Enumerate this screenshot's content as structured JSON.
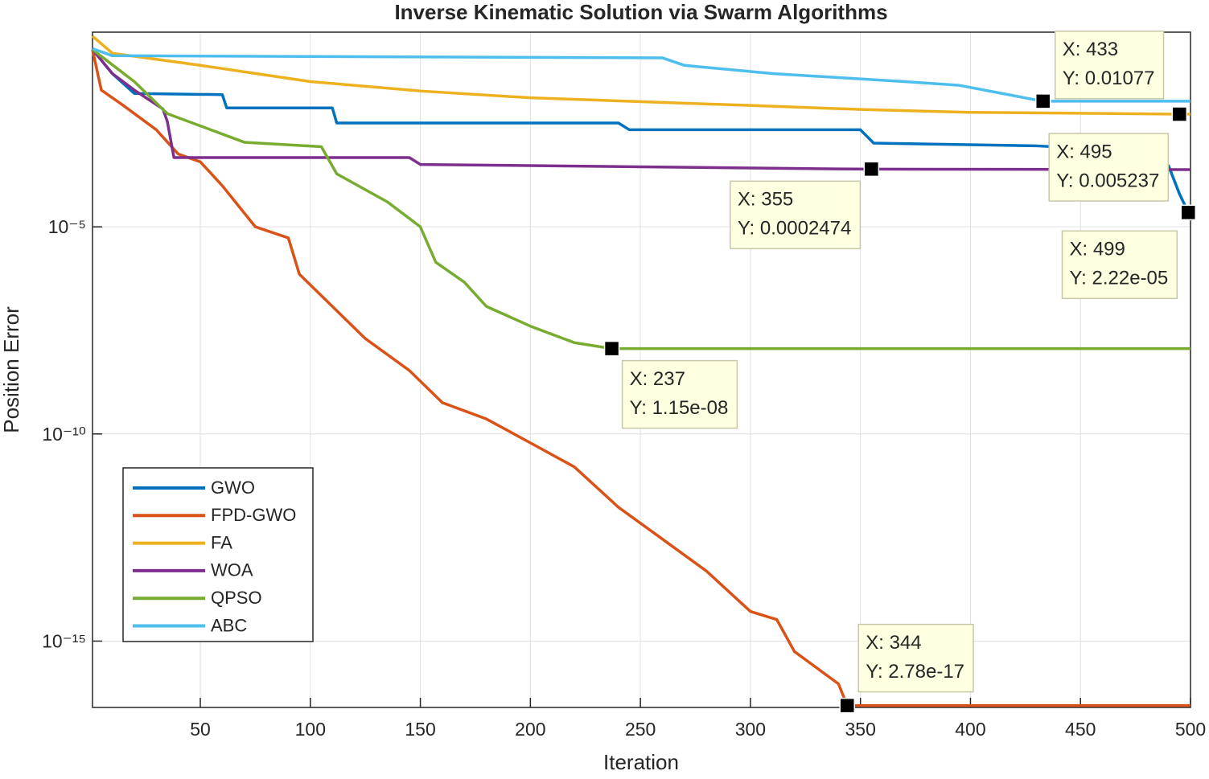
{
  "chart_data": {
    "type": "line",
    "title": "Inverse Kinematic Solution via Swarm Algorithms",
    "x_label": "Iteration",
    "y_label": "Position Error",
    "log_y": true,
    "grid": true,
    "legend_position": "lower-left",
    "xlim": [
      1,
      500
    ],
    "xticks": [
      50,
      100,
      150,
      200,
      250,
      300,
      350,
      400,
      450,
      500
    ],
    "ylim": [
      2.5e-17,
      0.5
    ],
    "yticks": [
      {
        "value": 1e-15,
        "label": "10⁻¹⁵"
      },
      {
        "value": 1e-10,
        "label": "10⁻¹⁰"
      },
      {
        "value": 1e-05,
        "label": "10⁻⁵"
      }
    ],
    "series": [
      {
        "name": "GWO",
        "color": "#0072BD",
        "x": [
          1,
          10,
          20,
          60,
          62,
          110,
          112,
          240,
          245,
          350,
          356,
          430,
          470,
          490,
          495,
          499,
          500
        ],
        "values": [
          0.19,
          0.05,
          0.0166,
          0.0155,
          0.0074,
          0.0074,
          0.0032,
          0.0032,
          0.0022,
          0.0022,
          0.00105,
          0.0009,
          0.0007,
          0.0003,
          6.2e-05,
          2.22e-05,
          2.22e-05
        ]
      },
      {
        "name": "FPD-GWO",
        "color": "#D95319",
        "x": [
          1,
          5,
          15,
          30,
          40,
          50,
          60,
          75,
          90,
          95,
          110,
          125,
          145,
          160,
          180,
          200,
          220,
          240,
          260,
          280,
          300,
          312,
          320,
          340,
          344,
          500
        ],
        "values": [
          0.19,
          0.02,
          0.0085,
          0.0022,
          0.00057,
          0.00037,
          9.8e-05,
          1e-05,
          5.4e-06,
          7.2e-07,
          1.2e-07,
          2e-08,
          3.4e-09,
          5.7e-10,
          2.3e-10,
          6.1e-11,
          1.6e-11,
          1.7e-12,
          2.9e-13,
          4.9e-14,
          5.2e-15,
          3.3e-15,
          5.6e-16,
          9.3e-17,
          2.78e-17,
          2.78e-17
        ]
      },
      {
        "name": "FA",
        "color": "#EDB120",
        "x": [
          1,
          10,
          50,
          100,
          150,
          200,
          300,
          350,
          400,
          495,
          500
        ],
        "values": [
          0.4,
          0.155,
          0.079,
          0.032,
          0.019,
          0.013,
          0.0085,
          0.0068,
          0.0058,
          0.005237,
          0.005237
        ]
      },
      {
        "name": "WOA",
        "color": "#7E2F8E",
        "x": [
          1,
          10,
          20,
          33,
          35,
          38,
          145,
          150,
          340,
          355,
          500
        ],
        "values": [
          0.19,
          0.05,
          0.02,
          0.007,
          0.0035,
          0.00047,
          0.00047,
          0.00032,
          0.00025,
          0.0002474,
          0.00024
        ]
      },
      {
        "name": "QPSO",
        "color": "#77AC30",
        "x": [
          1,
          20,
          35,
          70,
          105,
          112,
          135,
          150,
          157,
          170,
          180,
          200,
          220,
          237,
          500
        ],
        "values": [
          0.19,
          0.032,
          0.0054,
          0.0011,
          0.00086,
          0.00019,
          4e-05,
          1e-05,
          1.4e-06,
          4.6e-07,
          1.2e-07,
          4e-08,
          1.6e-08,
          1.15e-08,
          1.15e-08
        ]
      },
      {
        "name": "ABC",
        "color": "#4DBEEE",
        "x": [
          1,
          10,
          260,
          270,
          310,
          370,
          395,
          430,
          433,
          500
        ],
        "values": [
          0.2,
          0.135,
          0.12,
          0.079,
          0.05,
          0.032,
          0.026,
          0.0115,
          0.01077,
          0.01077
        ]
      }
    ],
    "datatips": [
      {
        "x": 433,
        "y": 0.01077,
        "label_x": "X: 433",
        "label_y": "Y: 0.01077"
      },
      {
        "x": 495,
        "y": 0.005237,
        "label_x": "X: 495",
        "label_y": "Y: 0.005237"
      },
      {
        "x": 499,
        "y": 2.22e-05,
        "label_x": "X: 499",
        "label_y": "Y: 2.22e-05"
      },
      {
        "x": 355,
        "y": 0.0002474,
        "label_x": "X: 355",
        "label_y": "Y: 0.0002474"
      },
      {
        "x": 237,
        "y": 1.15e-08,
        "label_x": "X: 237",
        "label_y": "Y: 1.15e-08"
      },
      {
        "x": 344,
        "y": 2.78e-17,
        "label_x": "X: 344",
        "label_y": "Y: 2.78e-17"
      }
    ]
  }
}
